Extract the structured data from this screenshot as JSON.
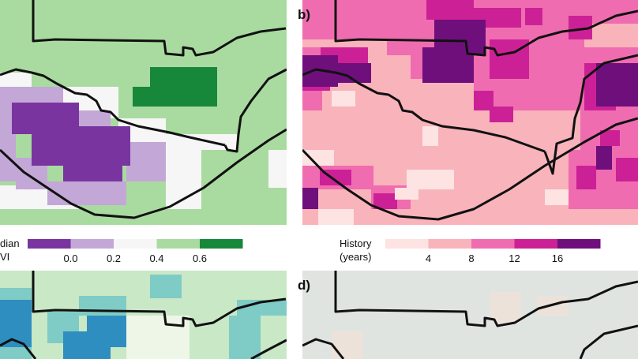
{
  "panels": [
    {
      "letter": "",
      "legend_title": [
        "dian",
        "VI"
      ],
      "ticks": [
        "0.0",
        "0.2",
        "0.4",
        "0.6"
      ],
      "legend_colors": [
        "#7a34a0",
        "#c3a7d6",
        "#f6f6f6",
        "#a9dba0",
        "#17883a"
      ]
    },
    {
      "letter": "b)",
      "legend_title": [
        "History",
        "(years)"
      ],
      "ticks": [
        "4",
        "8",
        "12",
        "16"
      ],
      "legend_colors": [
        "#fde3e1",
        "#f9b3bb",
        "#f06cb0",
        "#cc2196",
        "#6e0f7c"
      ]
    },
    {
      "letter": "",
      "legend_title": [],
      "ticks": [],
      "legend_colors": []
    },
    {
      "letter": "d)",
      "legend_title": [],
      "ticks": [],
      "legend_colors": []
    }
  ],
  "colors": {
    "outline": "#111111",
    "ndvi_background": "#a9dba0",
    "history_background": "#f9b3bb",
    "panel_c_background": "#c9e8c6",
    "panel_d_background": "#dfe4e1"
  }
}
